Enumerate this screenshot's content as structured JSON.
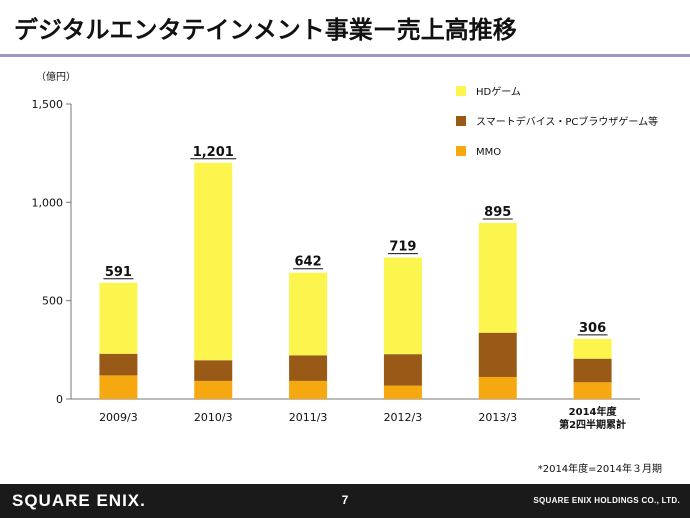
{
  "page": {
    "title": "デジタルエンタテインメント事業ー売上高推移",
    "footnote": "*2014年度=2014年３月期",
    "page_number": "7",
    "logo": "SQUARE ENIX.",
    "company": "SQUARE ENIX HOLDINGS CO., LTD."
  },
  "colors": {
    "hd": "#fbf54e",
    "smart": "#9a5a17",
    "mmo": "#f5a80f"
  },
  "chart_data": {
    "type": "bar",
    "stacked": true,
    "unit": "（億円）",
    "ylim": [
      0,
      1500
    ],
    "yticks": [
      0,
      500,
      1000,
      1500
    ],
    "ytick_labels": [
      "0",
      "500",
      "1,000",
      "1,500"
    ],
    "categories": [
      "2009/3",
      "2010/3",
      "2011/3",
      "2012/3",
      "2013/3",
      "2014年度\n第2四半期累計"
    ],
    "series": [
      {
        "name": "MMO",
        "values": [
          120,
          92,
          92,
          68,
          112,
          85
        ]
      },
      {
        "name": "スマートデバイス・PCブラウザゲーム等",
        "values": [
          110,
          105,
          130,
          160,
          225,
          120
        ]
      },
      {
        "name": "HDゲーム",
        "values": [
          361,
          1004,
          420,
          491,
          558,
          101
        ]
      }
    ],
    "totals": [
      591,
      1201,
      642,
      719,
      895,
      306
    ],
    "total_labels": [
      "591",
      "1,201",
      "642",
      "719",
      "895",
      "306"
    ],
    "legend": [
      {
        "name": "HDゲーム",
        "color": "#fbf54e"
      },
      {
        "name": "スマートデバイス・PCブラウザゲーム等",
        "color": "#9a5a17"
      },
      {
        "name": "MMO",
        "color": "#f5a80f"
      }
    ],
    "legend_position": "top-right"
  }
}
